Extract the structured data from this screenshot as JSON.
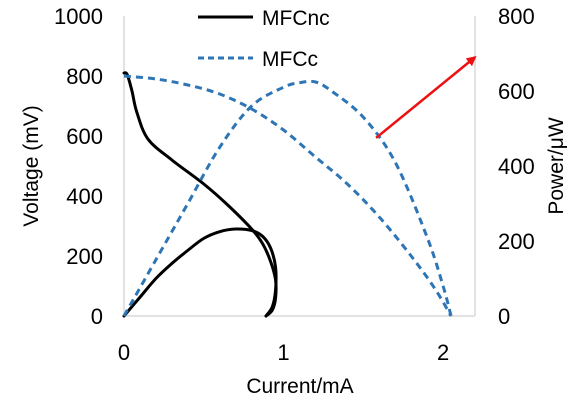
{
  "chart_data": {
    "type": "line",
    "title": "",
    "xlabel": "Current/mA",
    "ylabel_left": "Voltage (mV)",
    "ylabel_right": "Power/μW",
    "xlim": [
      0,
      2.2
    ],
    "ylim_left": [
      0,
      1000
    ],
    "ylim_right": [
      0,
      800
    ],
    "x_ticks": [
      0,
      1,
      2
    ],
    "y_left_ticks": [
      0,
      200,
      400,
      600,
      800,
      1000
    ],
    "y_right_ticks": [
      0,
      200,
      400,
      600,
      800
    ],
    "grid": false,
    "legend_position": "top-center",
    "annotations": [
      {
        "type": "arrow",
        "color": "#ee1111",
        "from": {
          "x": 1.58,
          "y_right": 475
        },
        "to": {
          "x": 2.2,
          "y_right": 690
        }
      }
    ],
    "series": [
      {
        "name": "MFCnc",
        "style": "solid",
        "color": "#000000",
        "curves": [
          {
            "axis": "left",
            "role": "voltage",
            "points": [
              [
                0.0,
                810
              ],
              [
                0.02,
                805
              ],
              [
                0.05,
                750
              ],
              [
                0.08,
                680
              ],
              [
                0.15,
                590
              ],
              [
                0.3,
                520
              ],
              [
                0.5,
                440
              ],
              [
                0.65,
                370
              ],
              [
                0.8,
                290
              ],
              [
                0.87,
                240
              ],
              [
                0.92,
                180
              ],
              [
                0.95,
                120
              ],
              [
                0.95,
                60
              ],
              [
                0.93,
                20
              ],
              [
                0.89,
                0
              ]
            ]
          },
          {
            "axis": "right",
            "role": "power",
            "points": [
              [
                0.0,
                0
              ],
              [
                0.1,
                50
              ],
              [
                0.2,
                100
              ],
              [
                0.3,
                140
              ],
              [
                0.4,
                175
              ],
              [
                0.5,
                207
              ],
              [
                0.6,
                225
              ],
              [
                0.7,
                232
              ],
              [
                0.8,
                228
              ],
              [
                0.87,
                212
              ],
              [
                0.92,
                180
              ],
              [
                0.95,
                130
              ],
              [
                0.95,
                70
              ],
              [
                0.93,
                25
              ],
              [
                0.89,
                0
              ]
            ]
          }
        ]
      },
      {
        "name": "MFCc",
        "style": "dashed",
        "color": "#2e75b6",
        "curves": [
          {
            "axis": "left",
            "role": "voltage",
            "points": [
              [
                0.0,
                800
              ],
              [
                0.2,
                790
              ],
              [
                0.4,
                770
              ],
              [
                0.6,
                740
              ],
              [
                0.8,
                690
              ],
              [
                1.0,
                620
              ],
              [
                1.2,
                530
              ],
              [
                1.4,
                440
              ],
              [
                1.6,
                330
              ],
              [
                1.8,
                200
              ],
              [
                1.95,
                90
              ],
              [
                2.05,
                0
              ]
            ]
          },
          {
            "axis": "right",
            "role": "power",
            "points": [
              [
                0.0,
                0
              ],
              [
                0.2,
                150
              ],
              [
                0.4,
                300
              ],
              [
                0.6,
                450
              ],
              [
                0.8,
                560
              ],
              [
                1.0,
                610
              ],
              [
                1.1,
                622
              ],
              [
                1.2,
                624
              ],
              [
                1.3,
                600
              ],
              [
                1.5,
                530
              ],
              [
                1.7,
                410
              ],
              [
                1.9,
                210
              ],
              [
                2.0,
                80
              ],
              [
                2.05,
                0
              ]
            ]
          }
        ]
      }
    ]
  }
}
